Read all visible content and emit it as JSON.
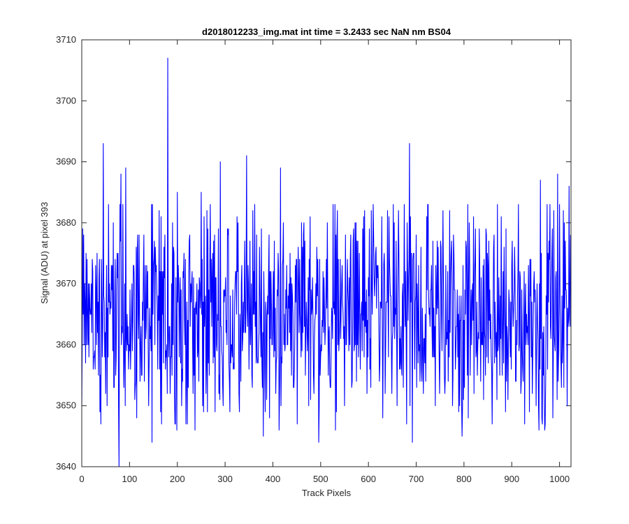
{
  "chart_data": {
    "type": "line",
    "title": "d2018012233_img.mat int time = 3.2433 sec  NaN nm BS04",
    "xlabel": "Track Pixels",
    "ylabel": "Signal (ADU) at pixel 393",
    "xlim": [
      0,
      1024
    ],
    "ylim": [
      3640,
      3710
    ],
    "xticks": [
      0,
      100,
      200,
      300,
      400,
      500,
      600,
      700,
      800,
      900,
      1000
    ],
    "yticks": [
      3640,
      3650,
      3660,
      3670,
      3680,
      3690,
      3700,
      3710
    ],
    "grid": false,
    "line_color": "#0000ff",
    "n_points": 1024,
    "baseline_mean": 3665,
    "typical_range": [
      3648,
      3682
    ],
    "series": [
      {
        "points": [
          [
            0,
            3650
          ],
          [
            4,
            3678
          ],
          [
            10,
            3660
          ],
          [
            16,
            3670
          ],
          [
            24,
            3656
          ],
          [
            30,
            3669
          ],
          [
            38,
            3649
          ],
          [
            45,
            3693
          ],
          [
            50,
            3652
          ],
          [
            60,
            3667
          ],
          [
            66,
            3680
          ],
          [
            72,
            3658
          ],
          [
            76,
            3675
          ],
          [
            78,
            3640
          ],
          [
            82,
            3688
          ],
          [
            88,
            3653
          ],
          [
            92,
            3689
          ],
          [
            97,
            3663
          ],
          [
            110,
            3670
          ],
          [
            115,
            3648
          ],
          [
            130,
            3678
          ],
          [
            140,
            3650
          ],
          [
            147,
            3644
          ],
          [
            152,
            3677
          ],
          [
            165,
            3649
          ],
          [
            172,
            3676
          ],
          [
            180,
            3707
          ],
          [
            185,
            3652
          ],
          [
            190,
            3680
          ],
          [
            195,
            3647
          ],
          [
            200,
            3685
          ],
          [
            210,
            3656
          ],
          [
            220,
            3667
          ],
          [
            235,
            3655
          ],
          [
            250,
            3685
          ],
          [
            255,
            3649
          ],
          [
            262,
            3682
          ],
          [
            272,
            3663
          ],
          [
            285,
            3664
          ],
          [
            290,
            3690
          ],
          [
            296,
            3650
          ],
          [
            306,
            3678
          ],
          [
            315,
            3658
          ],
          [
            322,
            3672
          ],
          [
            330,
            3649
          ],
          [
            345,
            3691
          ],
          [
            350,
            3656
          ],
          [
            360,
            3672
          ],
          [
            370,
            3660
          ],
          [
            380,
            3645
          ],
          [
            392,
            3678
          ],
          [
            406,
            3652
          ],
          [
            416,
            3689
          ],
          [
            426,
            3660
          ],
          [
            436,
            3675
          ],
          [
            445,
            3656
          ],
          [
            455,
            3662
          ],
          [
            465,
            3680
          ],
          [
            475,
            3650
          ],
          [
            483,
            3671
          ],
          [
            496,
            3644
          ],
          [
            505,
            3672
          ],
          [
            520,
            3653
          ],
          [
            535,
            3682
          ],
          [
            550,
            3650
          ],
          [
            560,
            3671
          ],
          [
            575,
            3654
          ],
          [
            590,
            3681
          ],
          [
            605,
            3653
          ],
          [
            618,
            3673
          ],
          [
            630,
            3648
          ],
          [
            645,
            3671
          ],
          [
            660,
            3650
          ],
          [
            672,
            3670
          ],
          [
            680,
            3647
          ],
          [
            686,
            3693
          ],
          [
            692,
            3644
          ],
          [
            700,
            3678
          ],
          [
            712,
            3654
          ],
          [
            725,
            3683
          ],
          [
            740,
            3650
          ],
          [
            752,
            3676
          ],
          [
            760,
            3652
          ],
          [
            770,
            3682
          ],
          [
            783,
            3659
          ],
          [
            796,
            3645
          ],
          [
            806,
            3667
          ],
          [
            820,
            3681
          ],
          [
            835,
            3654
          ],
          [
            850,
            3673
          ],
          [
            864,
            3657
          ],
          [
            878,
            3681
          ],
          [
            892,
            3651
          ],
          [
            906,
            3676
          ],
          [
            920,
            3654
          ],
          [
            938,
            3674
          ],
          [
            952,
            3661
          ],
          [
            960,
            3687
          ],
          [
            964,
            3647
          ],
          [
            978,
            3677
          ],
          [
            990,
            3660
          ],
          [
            996,
            3688
          ],
          [
            1004,
            3653
          ],
          [
            1010,
            3680
          ],
          [
            1016,
            3650
          ],
          [
            1020,
            3686
          ],
          [
            1023,
            3678
          ]
        ]
      }
    ]
  }
}
